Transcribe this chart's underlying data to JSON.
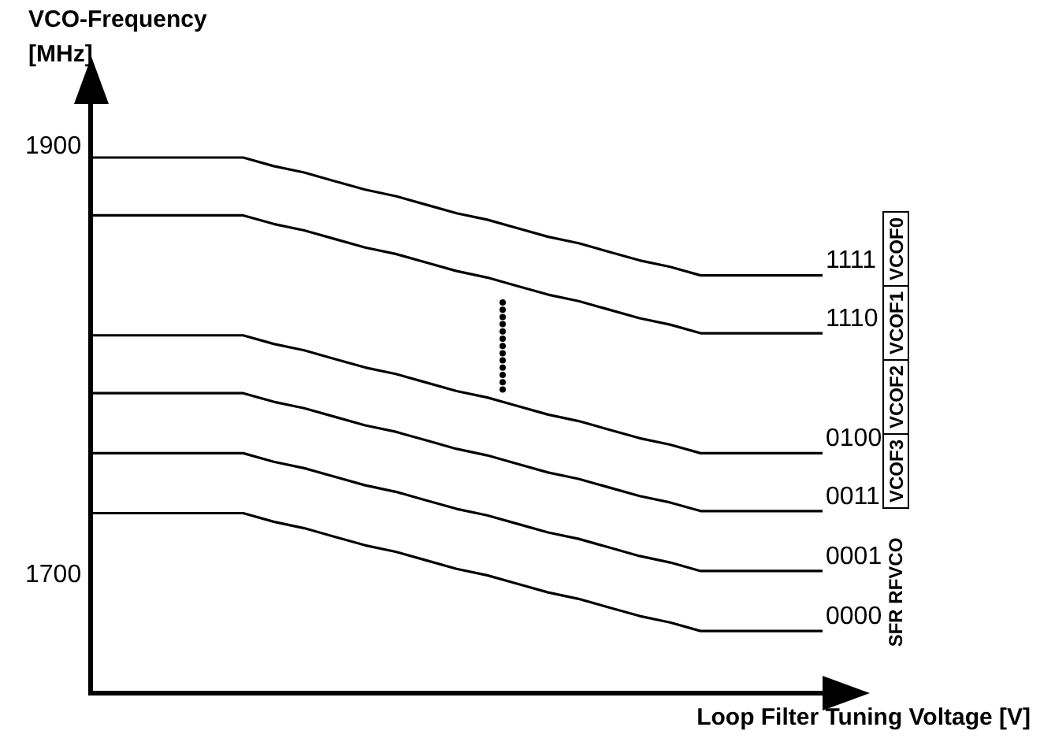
{
  "chart_data": {
    "type": "line",
    "xlabel": "Loop Filter Tuning Voltage [V]",
    "ylabel": "VCO-Frequency [MHz]",
    "categories": [
      null,
      null,
      null,
      null,
      null,
      null,
      null,
      null,
      null,
      null,
      null,
      null,
      null,
      null,
      null,
      null,
      null,
      null,
      null,
      null,
      null,
      null,
      null,
      null,
      null
    ],
    "ylim": [
      1645,
      1920
    ],
    "yticks": [
      1700,
      1900
    ],
    "grid": false,
    "legend": false,
    "marker": "none",
    "line_style": "solid",
    "series": [
      {
        "name": "1111",
        "color": "#000000",
        "values": [
          1895,
          1895,
          1895,
          1895,
          1895,
          1895,
          1891,
          1888,
          1884,
          1880,
          1877,
          1873,
          1869,
          1866,
          1862,
          1858,
          1855,
          1851,
          1847,
          1844,
          1840,
          1840,
          1840,
          1840,
          1840
        ]
      },
      {
        "name": "1110",
        "color": "#000000",
        "values": [
          1868,
          1868,
          1868,
          1868,
          1868,
          1868,
          1864,
          1861,
          1857,
          1853,
          1850,
          1846,
          1842,
          1839,
          1835,
          1831,
          1828,
          1824,
          1820,
          1817,
          1813,
          1813,
          1813,
          1813,
          1813
        ]
      },
      {
        "name": "0100",
        "color": "#000000",
        "values": [
          1812,
          1812,
          1812,
          1812,
          1812,
          1812,
          1808,
          1805,
          1801,
          1797,
          1794,
          1790,
          1786,
          1783,
          1779,
          1775,
          1772,
          1768,
          1764,
          1761,
          1757,
          1757,
          1757,
          1757,
          1757
        ]
      },
      {
        "name": "0011",
        "color": "#000000",
        "values": [
          1785,
          1785,
          1785,
          1785,
          1785,
          1785,
          1781,
          1778,
          1774,
          1770,
          1767,
          1763,
          1759,
          1756,
          1752,
          1748,
          1745,
          1741,
          1737,
          1734,
          1730,
          1730,
          1730,
          1730,
          1730
        ]
      },
      {
        "name": "0001",
        "color": "#000000",
        "values": [
          1757,
          1757,
          1757,
          1757,
          1757,
          1757,
          1753,
          1750,
          1746,
          1742,
          1739,
          1735,
          1731,
          1728,
          1724,
          1720,
          1717,
          1713,
          1709,
          1706,
          1702,
          1702,
          1702,
          1702,
          1702
        ]
      },
      {
        "name": "0000",
        "color": "#000000",
        "values": [
          1729,
          1729,
          1729,
          1729,
          1729,
          1729,
          1725,
          1722,
          1718,
          1714,
          1711,
          1707,
          1703,
          1700,
          1696,
          1692,
          1689,
          1685,
          1681,
          1678,
          1674,
          1674,
          1674,
          1674,
          1674
        ]
      }
    ],
    "annotations": [
      "VCOF0",
      "VCOF1",
      "VCOF2",
      "VCOF3",
      "SFR RFVCO"
    ]
  }
}
